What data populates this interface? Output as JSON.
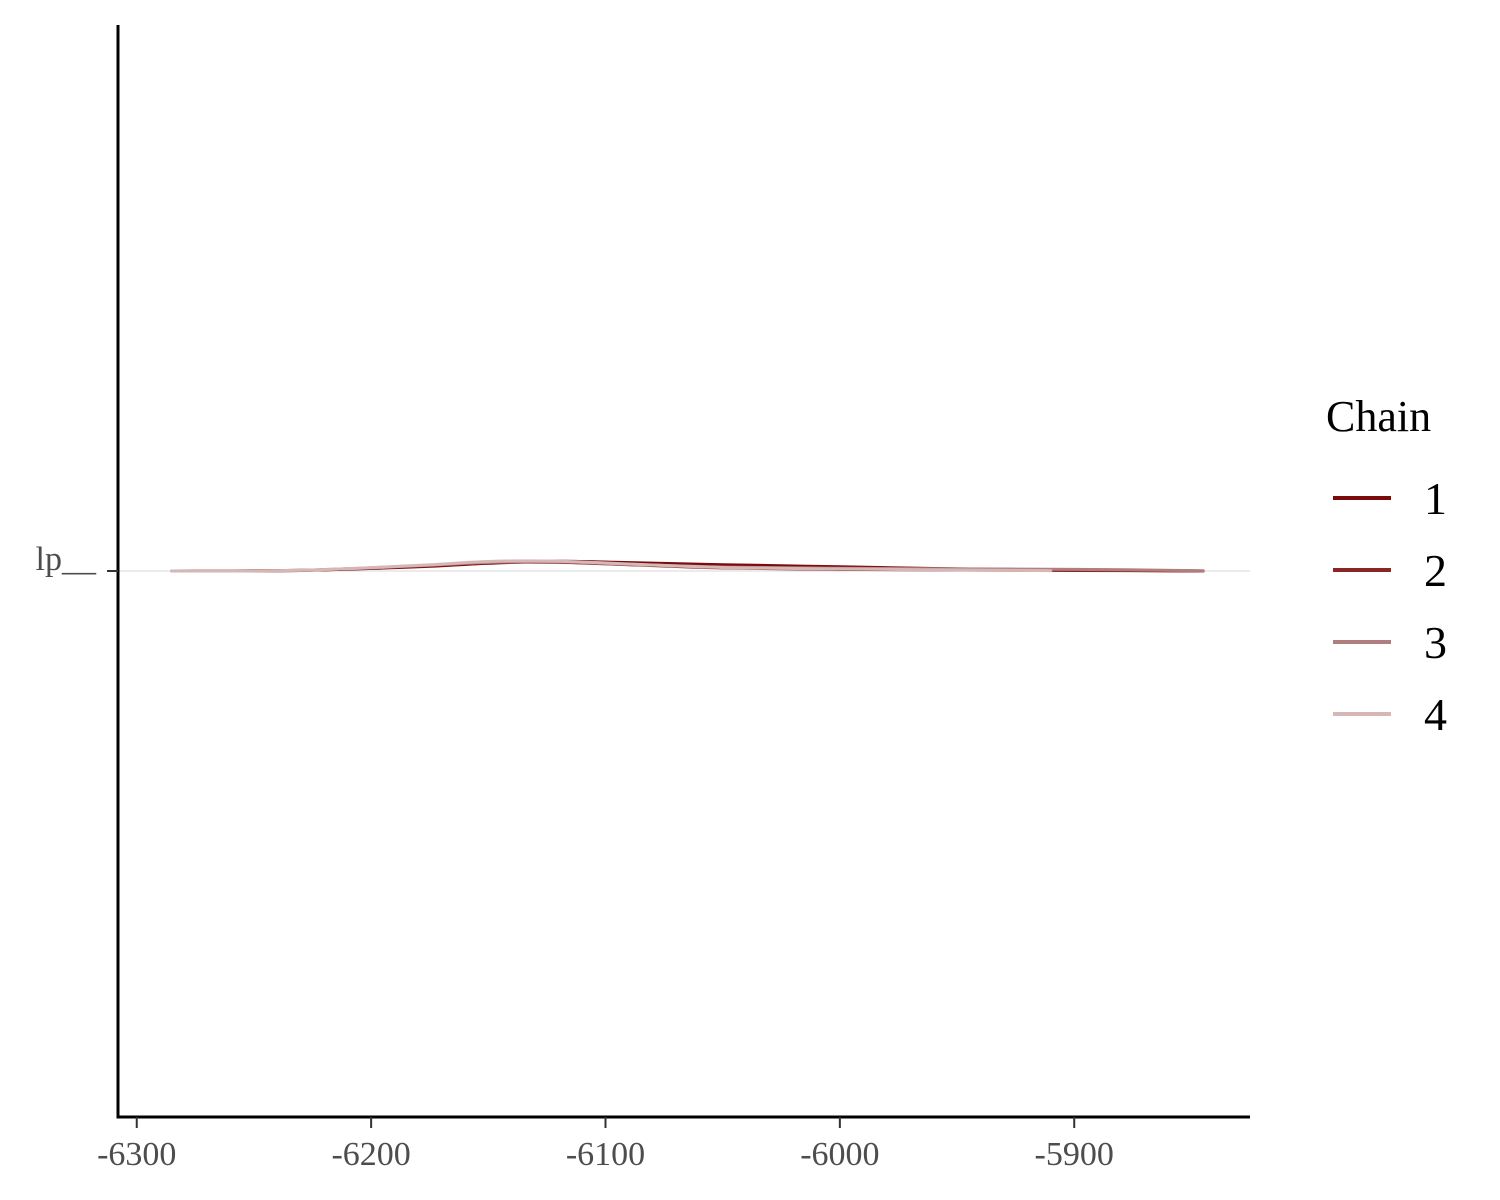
{
  "chart_data": {
    "type": "line",
    "title": "",
    "xlabel": "",
    "ylabel": "",
    "xlim": [
      -6308,
      -5825
    ],
    "x_ticks": [
      -6300,
      -6200,
      -6100,
      -6000,
      -5900
    ],
    "x_tick_labels": [
      "-6300",
      "-6200",
      "-6100",
      "-6000",
      "-5900"
    ],
    "y_categories": [
      "lp__"
    ],
    "y_tick_label": "lp__",
    "grid": "horizontal reference line at lp__ only",
    "legend": {
      "title": "Chain",
      "placement": "right",
      "entries": [
        "1",
        "2",
        "3",
        "4"
      ]
    },
    "series": [
      {
        "name": "1",
        "color": "#7b0a0a",
        "points": [
          [
            -6285,
            0.0
          ],
          [
            -6230,
            0.05
          ],
          [
            -6180,
            0.3
          ],
          [
            -6150,
            0.55
          ],
          [
            -6120,
            0.7
          ],
          [
            -6090,
            0.6
          ],
          [
            -6050,
            0.45
          ],
          [
            -6000,
            0.3
          ],
          [
            -5950,
            0.15
          ],
          [
            -5900,
            0.08
          ],
          [
            -5845,
            0.0
          ]
        ]
      },
      {
        "name": "2",
        "color": "#8b2626",
        "points": [
          [
            -6285,
            0.0
          ],
          [
            -6230,
            0.04
          ],
          [
            -6180,
            0.35
          ],
          [
            -6150,
            0.6
          ],
          [
            -6120,
            0.62
          ],
          [
            -6090,
            0.45
          ],
          [
            -6050,
            0.22
          ],
          [
            -6000,
            0.12
          ],
          [
            -5950,
            0.07
          ],
          [
            -5900,
            0.04
          ],
          [
            -5845,
            0.0
          ]
        ]
      },
      {
        "name": "3",
        "color": "#b07e7e",
        "points": [
          [
            -6285,
            0.0
          ],
          [
            -6230,
            0.05
          ],
          [
            -6180,
            0.38
          ],
          [
            -6150,
            0.62
          ],
          [
            -6120,
            0.65
          ],
          [
            -6090,
            0.48
          ],
          [
            -6050,
            0.28
          ],
          [
            -6000,
            0.2
          ],
          [
            -5950,
            0.15
          ],
          [
            -5900,
            0.12
          ],
          [
            -5845,
            0.02
          ]
        ]
      },
      {
        "name": "4",
        "color": "#d6b7b7",
        "points": [
          [
            -6285,
            0.0
          ],
          [
            -6230,
            0.05
          ],
          [
            -6180,
            0.4
          ],
          [
            -6150,
            0.68
          ],
          [
            -6120,
            0.7
          ],
          [
            -6090,
            0.5
          ],
          [
            -6050,
            0.25
          ],
          [
            -6000,
            0.15
          ],
          [
            -5955,
            0.08
          ],
          [
            -5910,
            0.03
          ]
        ]
      }
    ]
  }
}
